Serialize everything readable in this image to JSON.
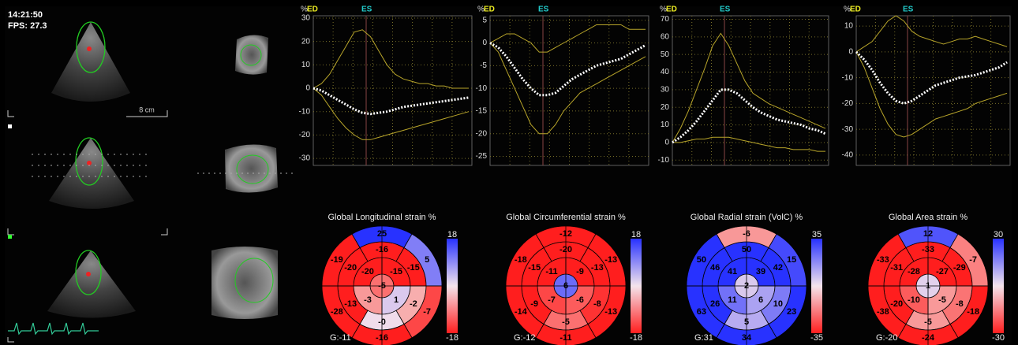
{
  "header": {
    "time": "14:21:50",
    "fps": "FPS: 27.3",
    "scale": "8 cm"
  },
  "curve_plots": [
    {
      "y_label": "%",
      "markers": [
        "ED",
        "ES"
      ],
      "ylim": [
        -33,
        31
      ],
      "yticks": [
        30,
        20,
        10,
        0,
        -10,
        -20,
        -30
      ],
      "mean": [
        0,
        -1,
        -3,
        -5,
        -7,
        -9,
        -10.5,
        -11,
        -10.5,
        -10,
        -9,
        -8,
        -7.5,
        -7,
        -6.5,
        -6,
        -5.5,
        -5,
        -4.5,
        -4
      ],
      "segments": [
        [
          0,
          2,
          6,
          12,
          18,
          24,
          25,
          22,
          16,
          10,
          6,
          4,
          3,
          2,
          2,
          1,
          1,
          0,
          0,
          0
        ],
        [
          0,
          -3,
          -8,
          -13,
          -17,
          -20,
          -22,
          -22,
          -21,
          -20,
          -19,
          -18,
          -17,
          -16,
          -15,
          -14,
          -13,
          -12,
          -11,
          -10
        ]
      ]
    },
    {
      "y_label": "%",
      "markers": [
        "ED",
        "ES"
      ],
      "ylim": [
        -27,
        6
      ],
      "yticks": [
        5,
        0,
        -5,
        -10,
        -15,
        -20,
        -25
      ],
      "mean": [
        0,
        -1,
        -3,
        -5.5,
        -8,
        -10,
        -11.5,
        -11.5,
        -11,
        -9.5,
        -8,
        -7,
        -6,
        -5,
        -4.5,
        -4,
        -3.5,
        -2.5,
        -1.5,
        -0.5
      ],
      "segments": [
        [
          0,
          1,
          2,
          2,
          1,
          0,
          -2,
          -2,
          -1,
          0,
          1,
          2,
          3,
          4,
          4,
          4,
          4,
          3,
          3,
          3
        ],
        [
          0,
          -2,
          -6,
          -10,
          -14,
          -18,
          -20,
          -20,
          -18,
          -15,
          -13,
          -11,
          -10,
          -9,
          -8,
          -7,
          -6,
          -5,
          -4,
          -3
        ]
      ]
    },
    {
      "y_label": "%",
      "markers": [
        "ED",
        "ES"
      ],
      "ylim": [
        -13,
        72
      ],
      "yticks": [
        70,
        60,
        50,
        40,
        30,
        20,
        10,
        0,
        -10
      ],
      "mean": [
        0,
        3,
        7,
        12,
        18,
        24,
        30,
        30,
        28,
        24,
        20,
        17,
        15,
        13,
        12,
        11,
        10,
        8,
        7,
        5
      ],
      "segments": [
        [
          0,
          8,
          18,
          30,
          42,
          55,
          62,
          55,
          45,
          35,
          28,
          25,
          22,
          20,
          18,
          16,
          14,
          12,
          10,
          8
        ],
        [
          0,
          0,
          1,
          2,
          2,
          3,
          3,
          3,
          2,
          1,
          0,
          -1,
          -2,
          -3,
          -3,
          -4,
          -4,
          -4,
          -5,
          -5
        ]
      ]
    },
    {
      "y_label": "%",
      "markers": [
        "ED",
        "ES"
      ],
      "ylim": [
        -44,
        14
      ],
      "yticks": [
        10,
        0,
        -10,
        -20,
        -30,
        -40
      ],
      "mean": [
        0,
        -3,
        -7,
        -12,
        -16,
        -19,
        -20,
        -19,
        -17,
        -15,
        -13,
        -12,
        -11,
        -10,
        -9.5,
        -9,
        -8,
        -7,
        -6,
        -4
      ],
      "segments": [
        [
          0,
          2,
          4,
          8,
          12,
          14,
          12,
          8,
          6,
          5,
          4,
          3,
          4,
          5,
          5,
          6,
          5,
          4,
          3,
          2
        ],
        [
          0,
          -6,
          -14,
          -22,
          -28,
          -32,
          -33,
          -32,
          -30,
          -28,
          -26,
          -25,
          -24,
          -23,
          -22,
          -20,
          -19,
          -18,
          -17,
          -16
        ]
      ]
    }
  ],
  "bullseyes": [
    {
      "title": "Global Longitudinal strain %",
      "global": "G:-11",
      "scale_max": 18,
      "scale_min": -18,
      "rings": [
        {
          "values": [
            -5
          ]
        },
        {
          "values": [
            -20,
            -15,
            1,
            -3
          ]
        },
        {
          "values": [
            -16,
            -15,
            -2,
            0,
            -13,
            -20
          ],
          "value_labels": [
            "-16",
            "-15",
            "-2",
            "-0",
            "-13",
            "-20"
          ]
        },
        {
          "values": [
            25,
            5,
            -7,
            -16,
            -28,
            -19
          ]
        }
      ]
    },
    {
      "title": "Global Circumferential strain %",
      "global": "G:-12",
      "scale_max": 18,
      "scale_min": -18,
      "rings": [
        {
          "values": [
            6
          ]
        },
        {
          "values": [
            -11,
            -9,
            -6,
            -7
          ]
        },
        {
          "values": [
            -20,
            -13,
            -8,
            -5,
            -9,
            -15
          ]
        },
        {
          "values": [
            -12,
            -13,
            -13,
            -11,
            -14,
            -18
          ]
        }
      ]
    },
    {
      "title": "Global Radial strain (VolC) %",
      "global": "G:31",
      "scale_max": 35,
      "scale_min": -35,
      "rings": [
        {
          "values": [
            2
          ]
        },
        {
          "values": [
            41,
            39,
            6,
            11
          ]
        },
        {
          "values": [
            50,
            42,
            10,
            5,
            26,
            46
          ]
        },
        {
          "values": [
            -6,
            15,
            23,
            34,
            63,
            50
          ]
        }
      ]
    },
    {
      "title": "Global Area strain %",
      "global": "G:-20",
      "scale_max": 30,
      "scale_min": -30,
      "rings": [
        {
          "values": [
            1
          ]
        },
        {
          "values": [
            -28,
            -27,
            -5,
            -10
          ]
        },
        {
          "values": [
            -33,
            -29,
            -8,
            -5,
            -20,
            -31
          ]
        },
        {
          "values": [
            12,
            -7,
            -18,
            -24,
            -38,
            -33
          ]
        }
      ]
    }
  ]
}
